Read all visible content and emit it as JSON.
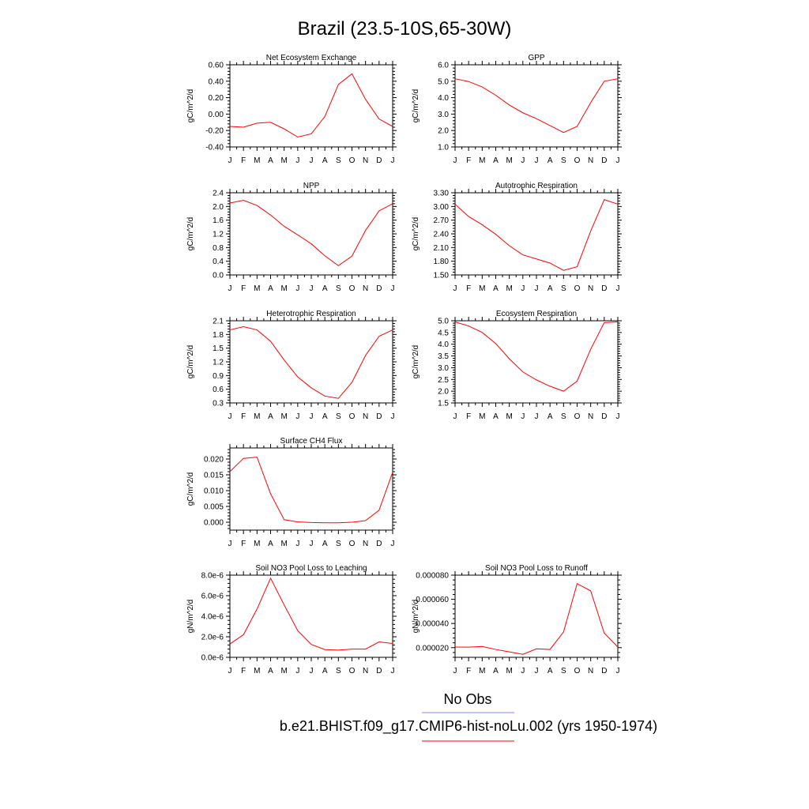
{
  "title": "Brazil (23.5-10S,65-30W)",
  "month_labels": [
    "J",
    "F",
    "M",
    "A",
    "M",
    "J",
    "J",
    "A",
    "S",
    "O",
    "N",
    "D",
    "J"
  ],
  "legend": {
    "obs_label": "No Obs",
    "obs_color": "#8080ff",
    "model_label": "b.e21.BHIST.f09_g17.CMIP6-hist-noLu.002 (yrs 1950-1974)",
    "model_color": "#ff0000"
  },
  "line_color": "#ff0000",
  "chart_data": [
    {
      "type": "line",
      "title": "Net Ecosystem Exchange",
      "ylabel": "gC/m^2/d",
      "ylim": [
        -0.4,
        0.6
      ],
      "yticks": [
        -0.4,
        -0.2,
        0.0,
        0.2,
        0.4,
        0.6
      ],
      "ytick_labels": [
        "-0.40",
        "-0.20",
        "0.00",
        "0.20",
        "0.40",
        "0.60"
      ],
      "x": [
        "J",
        "F",
        "M",
        "A",
        "M",
        "J",
        "J",
        "A",
        "S",
        "O",
        "N",
        "D",
        "J"
      ],
      "values": [
        -0.15,
        -0.16,
        -0.11,
        -0.1,
        -0.18,
        -0.28,
        -0.24,
        -0.03,
        0.36,
        0.49,
        0.18,
        -0.06,
        -0.15
      ]
    },
    {
      "type": "line",
      "title": "GPP",
      "ylabel": "gC/m^2/d",
      "ylim": [
        1.0,
        6.0
      ],
      "yticks": [
        1,
        2,
        3,
        4,
        5,
        6
      ],
      "ytick_labels": [
        "1.0",
        "2.0",
        "3.0",
        "4.0",
        "5.0",
        "6.0"
      ],
      "x": [
        "J",
        "F",
        "M",
        "A",
        "M",
        "J",
        "J",
        "A",
        "S",
        "O",
        "N",
        "D",
        "J"
      ],
      "values": [
        5.15,
        4.98,
        4.65,
        4.15,
        3.55,
        3.08,
        2.72,
        2.3,
        1.88,
        2.25,
        3.7,
        5.0,
        5.15
      ]
    },
    {
      "type": "line",
      "title": "NPP",
      "ylabel": "gC/m^2/d",
      "ylim": [
        0.0,
        2.4
      ],
      "yticks": [
        0.0,
        0.4,
        0.8,
        1.2,
        1.6,
        2.0,
        2.4
      ],
      "ytick_labels": [
        "0.0",
        "0.4",
        "0.8",
        "1.2",
        "1.6",
        "2.0",
        "2.4"
      ],
      "x": [
        "J",
        "F",
        "M",
        "A",
        "M",
        "J",
        "J",
        "A",
        "S",
        "O",
        "N",
        "D",
        "J"
      ],
      "values": [
        2.1,
        2.18,
        2.03,
        1.75,
        1.42,
        1.17,
        0.91,
        0.56,
        0.27,
        0.55,
        1.3,
        1.87,
        2.08
      ]
    },
    {
      "type": "line",
      "title": "Autotrophic Respiration",
      "ylabel": "gC/m^2/d",
      "ylim": [
        1.5,
        3.3
      ],
      "yticks": [
        1.5,
        1.8,
        2.1,
        2.4,
        2.7,
        3.0,
        3.3
      ],
      "ytick_labels": [
        "1.50",
        "1.80",
        "2.10",
        "2.40",
        "2.70",
        "3.00",
        "3.30"
      ],
      "x": [
        "J",
        "F",
        "M",
        "A",
        "M",
        "J",
        "J",
        "A",
        "S",
        "O",
        "N",
        "D",
        "J"
      ],
      "values": [
        3.05,
        2.78,
        2.6,
        2.39,
        2.14,
        1.94,
        1.85,
        1.76,
        1.6,
        1.68,
        2.46,
        3.15,
        3.05
      ]
    },
    {
      "type": "line",
      "title": "Heterotrophic Respiration",
      "ylabel": "gC/m^2/d",
      "ylim": [
        0.3,
        2.1
      ],
      "yticks": [
        0.3,
        0.6,
        0.9,
        1.2,
        1.5,
        1.8,
        2.1
      ],
      "ytick_labels": [
        "0.3",
        "0.6",
        "0.9",
        "1.2",
        "1.5",
        "1.8",
        "2.1"
      ],
      "x": [
        "J",
        "F",
        "M",
        "A",
        "M",
        "J",
        "J",
        "A",
        "S",
        "O",
        "N",
        "D",
        "J"
      ],
      "values": [
        1.9,
        1.97,
        1.9,
        1.65,
        1.24,
        0.87,
        0.63,
        0.45,
        0.4,
        0.75,
        1.34,
        1.76,
        1.9
      ]
    },
    {
      "type": "line",
      "title": "Ecosystem Respiration",
      "ylabel": "gC/m^2/d",
      "ylim": [
        1.5,
        5.0
      ],
      "yticks": [
        1.5,
        2.0,
        2.5,
        3.0,
        3.5,
        4.0,
        4.5,
        5.0
      ],
      "ytick_labels": [
        "1.5",
        "2.0",
        "2.5",
        "3.0",
        "3.5",
        "4.0",
        "4.5",
        "5.0"
      ],
      "x": [
        "J",
        "F",
        "M",
        "A",
        "M",
        "J",
        "J",
        "A",
        "S",
        "O",
        "N",
        "D",
        "J"
      ],
      "values": [
        4.95,
        4.78,
        4.5,
        4.03,
        3.38,
        2.82,
        2.48,
        2.21,
        2.0,
        2.43,
        3.79,
        4.92,
        4.95
      ]
    },
    {
      "type": "line",
      "title": "Surface CH4 Flux",
      "ylabel": "gC/m^2/d",
      "ylim": [
        -0.0025,
        0.0235
      ],
      "yticks": [
        0.0,
        0.005,
        0.01,
        0.015,
        0.02
      ],
      "ytick_labels": [
        "0.000",
        "0.005",
        "0.010",
        "0.015",
        "0.020"
      ],
      "x": [
        "J",
        "F",
        "M",
        "A",
        "M",
        "J",
        "J",
        "A",
        "S",
        "O",
        "N",
        "D",
        "J"
      ],
      "values": [
        0.016,
        0.0202,
        0.0206,
        0.009,
        0.0008,
        0.0001,
        -0.0001,
        -0.0002,
        -0.0002,
        0.0,
        0.0005,
        0.0038,
        0.0158
      ]
    },
    {
      "type": "line",
      "title": "Soil NO3 Pool Loss to Leaching",
      "ylabel": "gN/m^2/d",
      "ylim": [
        0.0,
        8e-06
      ],
      "yticks": [
        0.0,
        2e-06,
        4e-06,
        6e-06,
        8e-06
      ],
      "ytick_labels": [
        "0.0e-6",
        "2.0e-6",
        "4.0e-6",
        "6.0e-6",
        "8.0e-6"
      ],
      "x": [
        "J",
        "F",
        "M",
        "A",
        "M",
        "J",
        "J",
        "A",
        "S",
        "O",
        "N",
        "D",
        "J"
      ],
      "values": [
        1.3e-06,
        2.2e-06,
        4.7e-06,
        7.7e-06,
        5.1e-06,
        2.6e-06,
        1.25e-06,
        7.5e-07,
        7e-07,
        8e-07,
        8e-07,
        1.5e-06,
        1.35e-06
      ]
    },
    {
      "type": "line",
      "title": "Soil NO3 Pool Loss to Runoff",
      "ylabel": "gN/m^2/d",
      "ylim": [
        1.2e-05,
        8e-05
      ],
      "yticks": [
        2e-05,
        4e-05,
        6e-05,
        8e-05
      ],
      "ytick_labels": [
        "0.000020",
        "0.000040",
        "0.000060",
        "0.000080"
      ],
      "x": [
        "J",
        "F",
        "M",
        "A",
        "M",
        "J",
        "J",
        "A",
        "S",
        "O",
        "N",
        "D",
        "J"
      ],
      "values": [
        2.05e-05,
        2.04e-05,
        2.1e-05,
        1.85e-05,
        1.65e-05,
        1.45e-05,
        1.9e-05,
        1.85e-05,
        3.3e-05,
        7.3e-05,
        6.7e-05,
        3.2e-05,
        2.05e-05
      ]
    }
  ]
}
